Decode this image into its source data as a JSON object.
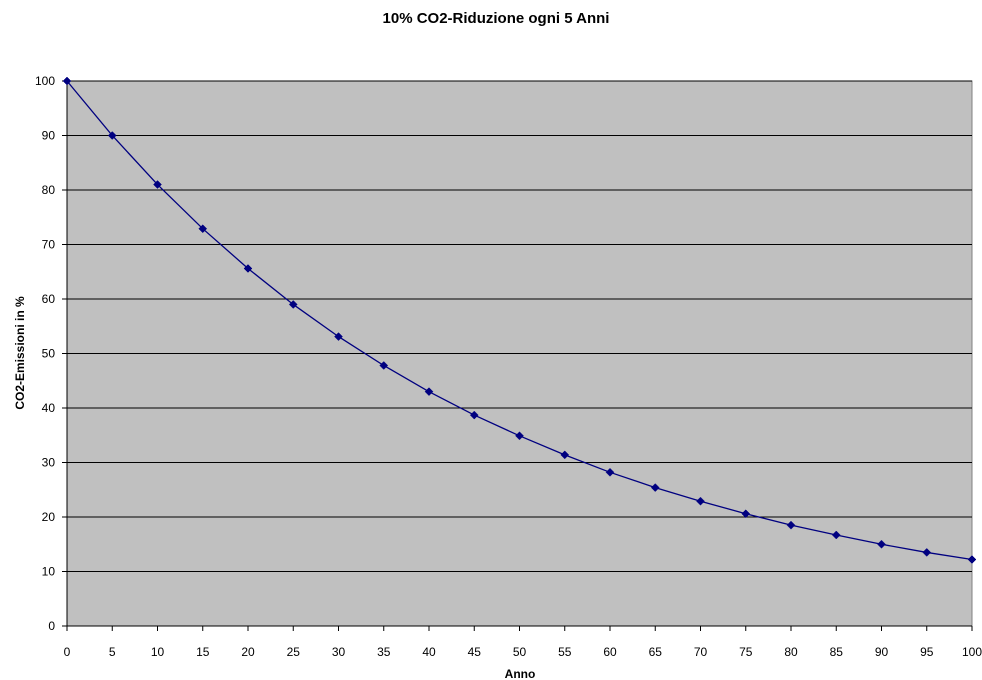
{
  "chart_data": {
    "type": "line",
    "title": "10% CO2-Riduzione ogni 5  Anni",
    "xlabel": "Anno",
    "ylabel": "CO2-Emissioni in %",
    "xlim": [
      0,
      100
    ],
    "ylim": [
      0,
      100
    ],
    "x_ticks": [
      0,
      5,
      10,
      15,
      20,
      25,
      30,
      35,
      40,
      45,
      50,
      55,
      60,
      65,
      70,
      75,
      80,
      85,
      90,
      95,
      100
    ],
    "y_ticks": [
      0,
      10,
      20,
      30,
      40,
      50,
      60,
      70,
      80,
      90,
      100
    ],
    "grid": "horizontal",
    "legend": "none",
    "colors": {
      "plot_background": "#c0c0c0",
      "line": "#000080",
      "grid": "#000000"
    },
    "series": [
      {
        "x": [
          0,
          5,
          10,
          15,
          20,
          25,
          30,
          35,
          40,
          45,
          50,
          55,
          60,
          65,
          70,
          75,
          80,
          85,
          90,
          95,
          100
        ],
        "values": [
          100,
          90,
          81,
          72.9,
          65.6,
          59.0,
          53.1,
          47.8,
          43.0,
          38.7,
          34.9,
          31.4,
          28.2,
          25.4,
          22.9,
          20.6,
          18.5,
          16.7,
          15.0,
          13.5,
          12.2
        ]
      }
    ]
  }
}
